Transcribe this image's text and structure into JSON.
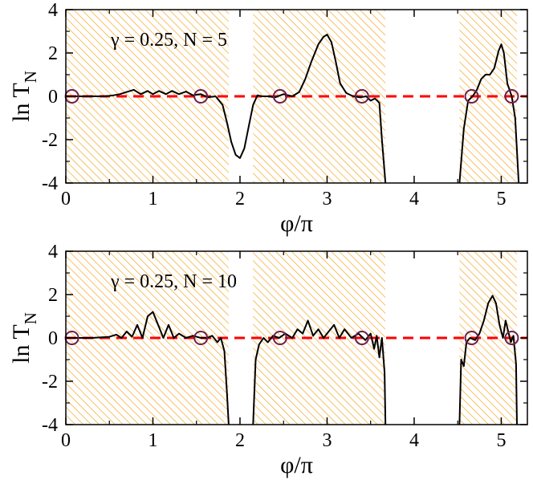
{
  "chart_data": [
    {
      "type": "line",
      "annotation": "γ = 0.25, N = 5",
      "xlabel": "φ/π",
      "ylabel": "ln T",
      "ylabel_sub": "N",
      "xlim": [
        0,
        5.3
      ],
      "ylim": [
        -4,
        4
      ],
      "xticks": [
        0,
        1,
        2,
        3,
        4,
        5
      ],
      "yticks": [
        -4,
        -2,
        0,
        2,
        4
      ],
      "hatched_regions": [
        [
          0,
          1.87
        ],
        [
          2.15,
          3.67
        ],
        [
          4.52,
          5.18
        ]
      ],
      "reference_line": {
        "y": 0,
        "style": "dashed",
        "color": "#ff0000"
      },
      "markers": [
        0.07,
        1.55,
        2.46,
        3.4,
        4.66,
        5.12
      ],
      "series": [
        {
          "color": "#000000",
          "x": [
            0.0,
            0.15,
            0.3,
            0.45,
            0.55,
            0.62,
            0.7,
            0.78,
            0.86,
            0.94,
            1.0,
            1.07,
            1.15,
            1.22,
            1.3,
            1.38,
            1.46,
            1.55,
            1.63,
            1.72,
            1.8,
            1.85,
            1.9,
            1.95,
            2.0,
            2.05,
            2.1,
            2.15,
            2.2,
            2.25,
            2.32,
            2.4,
            2.5,
            2.6,
            2.68,
            2.75,
            2.82,
            2.9,
            2.96,
            3.0,
            3.05,
            3.1,
            3.15,
            3.22,
            3.3,
            3.38,
            3.45,
            3.5,
            3.55,
            3.6,
            3.63,
            3.67
          ],
          "y": [
            0.0,
            0.0,
            0.0,
            0.0,
            0.05,
            0.1,
            0.2,
            0.3,
            0.1,
            0.25,
            0.1,
            0.25,
            0.1,
            0.25,
            0.1,
            0.22,
            0.05,
            0.1,
            -0.05,
            0.0,
            -0.4,
            -1.2,
            -2.1,
            -2.7,
            -2.85,
            -2.4,
            -1.4,
            -0.4,
            0.05,
            0.0,
            0.0,
            -0.05,
            0.1,
            0.0,
            0.2,
            0.8,
            1.6,
            2.4,
            2.75,
            2.85,
            2.5,
            1.6,
            0.6,
            0.15,
            0.0,
            -0.05,
            0.0,
            -0.2,
            -0.1,
            -0.3,
            -2.0,
            -4.0
          ],
          "gap_after": false
        },
        {
          "color": "#000000",
          "x": [
            4.52,
            4.57,
            4.62,
            4.67,
            4.72,
            4.77,
            4.82,
            4.87,
            4.92,
            4.97,
            5.0,
            5.03,
            5.07,
            5.12,
            5.16,
            5.2
          ],
          "y": [
            -4.0,
            -1.5,
            -0.2,
            0.0,
            0.3,
            0.8,
            1.0,
            1.0,
            1.3,
            2.1,
            2.4,
            2.0,
            0.6,
            0.0,
            -1.0,
            -4.0
          ]
        }
      ]
    },
    {
      "type": "line",
      "annotation": "γ = 0.25, N = 10",
      "xlabel": "φ/π",
      "ylabel": "ln T",
      "ylabel_sub": "N",
      "xlim": [
        0,
        5.3
      ],
      "ylim": [
        -4,
        4
      ],
      "xticks": [
        0,
        1,
        2,
        3,
        4,
        5
      ],
      "yticks": [
        -4,
        -2,
        0,
        2,
        4
      ],
      "hatched_regions": [
        [
          0,
          1.87
        ],
        [
          2.15,
          3.67
        ],
        [
          4.52,
          5.18
        ]
      ],
      "reference_line": {
        "y": 0,
        "style": "dashed",
        "color": "#ff0000"
      },
      "markers": [
        0.07,
        1.55,
        2.46,
        3.4,
        4.66,
        5.12
      ],
      "series": [
        {
          "color": "#000000",
          "x": [
            0.0,
            0.3,
            0.5,
            0.58,
            0.64,
            0.7,
            0.76,
            0.82,
            0.88,
            0.94,
            1.0,
            1.06,
            1.12,
            1.18,
            1.24,
            1.3,
            1.38,
            1.46,
            1.55,
            1.62,
            1.68,
            1.74,
            1.78,
            1.82,
            1.85,
            1.87
          ],
          "y": [
            0.0,
            0.0,
            0.05,
            0.15,
            0.0,
            0.3,
            0.05,
            0.6,
            0.0,
            1.0,
            1.2,
            0.6,
            0.0,
            0.6,
            0.0,
            0.2,
            0.0,
            0.1,
            0.0,
            0.0,
            0.1,
            -0.2,
            0.0,
            -0.6,
            -2.5,
            -4.0
          ]
        },
        {
          "color": "#000000",
          "x": [
            2.15,
            2.18,
            2.22,
            2.27,
            2.32,
            2.38,
            2.45,
            2.52,
            2.6,
            2.66,
            2.72,
            2.78,
            2.84,
            2.9,
            2.96,
            3.02,
            3.08,
            3.14,
            3.2,
            3.28,
            3.36,
            3.44,
            3.5,
            3.54,
            3.57,
            3.6,
            3.63,
            3.66,
            3.67
          ],
          "y": [
            -4.0,
            -1.0,
            -0.3,
            0.0,
            -0.2,
            0.1,
            0.0,
            0.2,
            0.0,
            0.4,
            0.2,
            0.8,
            0.1,
            0.4,
            0.0,
            0.3,
            0.6,
            0.0,
            0.4,
            0.0,
            0.2,
            -0.1,
            0.2,
            -0.5,
            0.1,
            -0.9,
            0.0,
            -1.6,
            -4.0
          ]
        },
        {
          "color": "#000000",
          "x": [
            4.52,
            4.54,
            4.57,
            4.6,
            4.64,
            4.7,
            4.75,
            4.8,
            4.85,
            4.9,
            4.94,
            4.98,
            5.02,
            5.05,
            5.08,
            5.11,
            5.14,
            5.17,
            5.18
          ],
          "y": [
            -4.0,
            -1.0,
            -1.3,
            -0.2,
            0.0,
            -0.1,
            0.2,
            0.8,
            1.6,
            1.95,
            1.6,
            0.6,
            0.0,
            0.8,
            0.3,
            -0.2,
            0.1,
            -1.2,
            -4.0
          ]
        }
      ]
    }
  ]
}
